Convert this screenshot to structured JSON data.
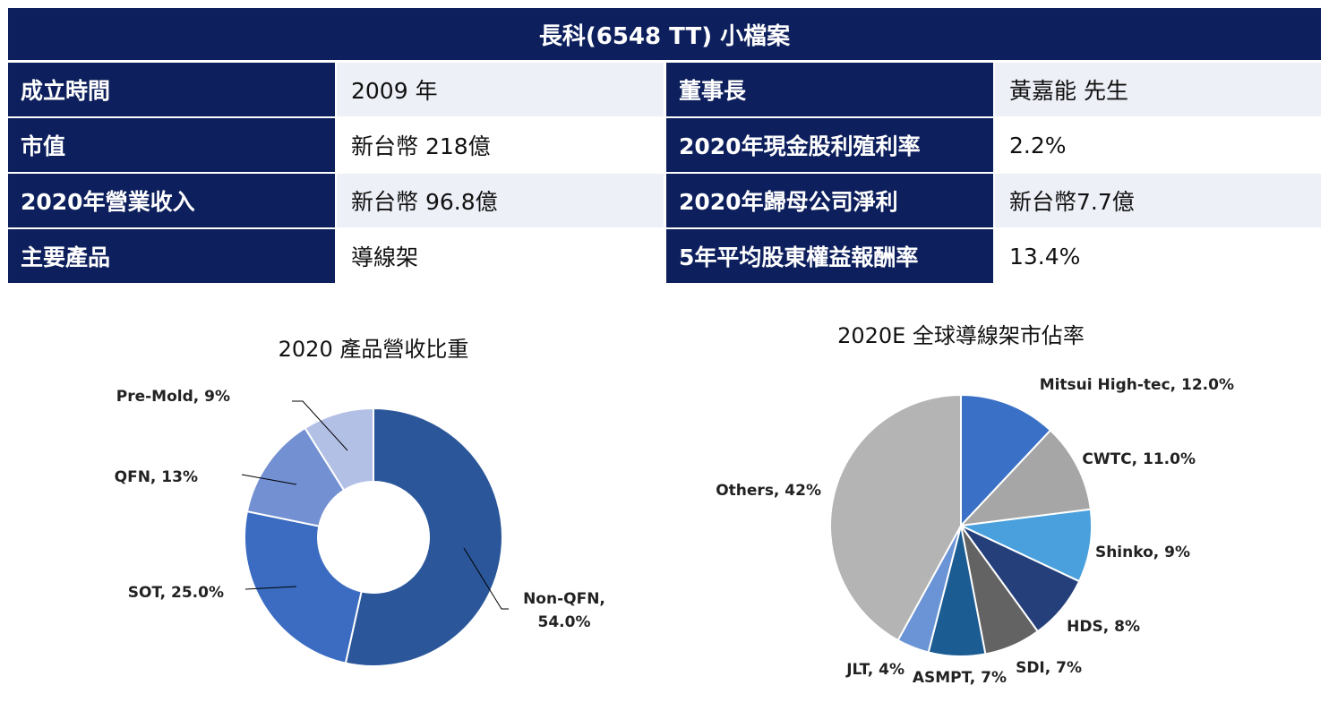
{
  "header": {
    "title": "長科(6548 TT) 小檔案"
  },
  "profile": {
    "rows": [
      {
        "label1": "成立時間",
        "value1": "2009 年",
        "label2": "董事長",
        "value2": "黃嘉能 先生"
      },
      {
        "label1": "市值",
        "value1": "新台幣 218億",
        "label2": "2020年現金股利殖利率",
        "value2": "2.2%"
      },
      {
        "label1": "2020年營業收入",
        "value1": "新台幣 96.8億",
        "label2": "2020年歸母公司淨利",
        "value2": "新台幣7.7億"
      },
      {
        "label1": "主要產品",
        "value1": "導線架",
        "label2": "5年平均股東權益報酬率",
        "value2": "13.4%"
      }
    ]
  },
  "chart_data": [
    {
      "type": "pie",
      "variant": "donut",
      "title": "2020 產品營收比重",
      "categories": [
        "Non-QFN",
        "SOT",
        "QFN",
        "Pre-Mold"
      ],
      "values": [
        54.0,
        25.0,
        13,
        9
      ],
      "labels": [
        "Non-QFN,|54.0%",
        "SOT, 25.0%",
        "QFN, 13%",
        "Pre-Mold, 9%"
      ],
      "colors": [
        "#2b579a",
        "#3b6cc2",
        "#7390d2",
        "#b3c0e6"
      ]
    },
    {
      "type": "pie",
      "title": "2020E 全球導線架市佔率",
      "categories": [
        "Mitsui High-tec",
        "CWTC",
        "Shinko",
        "HDS",
        "SDI",
        "ASMPT",
        "JLT",
        "Others"
      ],
      "values": [
        12.0,
        11.0,
        9,
        8,
        7,
        7,
        4,
        42
      ],
      "labels": [
        "Mitsui High-tec, 12.0%",
        "CWTC, 11.0%",
        "Shinko, 9%",
        "HDS, 8%",
        "SDI, 7%",
        "ASMPT, 7%",
        "JLT, 4%",
        "Others, 42%"
      ],
      "colors": [
        "#3a70c6",
        "#a6a6a6",
        "#4aa0dc",
        "#243f7a",
        "#636363",
        "#1b5c93",
        "#6b94d6",
        "#b4b4b4"
      ]
    }
  ]
}
